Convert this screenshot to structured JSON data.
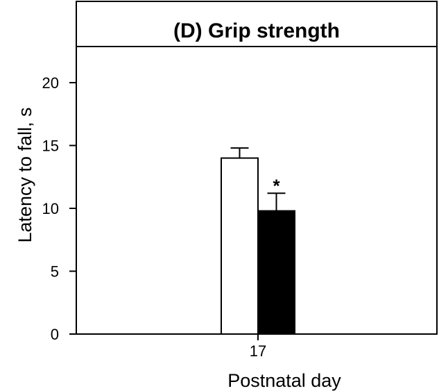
{
  "chart_data": {
    "type": "bar",
    "title": "(D) Grip strength",
    "xlabel": "Postnatal day",
    "ylabel": "Latency to fall, s",
    "categories": [
      "17"
    ],
    "series": [
      {
        "values": [
          14.0
        ],
        "errors": [
          0.8
        ],
        "color": "#ffffff"
      },
      {
        "values": [
          9.8
        ],
        "errors": [
          1.4
        ],
        "color": "#000000"
      }
    ],
    "yticks": [
      "0",
      "5",
      "10",
      "15",
      "20"
    ],
    "ylim": [
      0,
      25
    ],
    "annotations": [
      {
        "text": "*",
        "series": 1,
        "category": "17"
      }
    ],
    "grid": false,
    "legend": "none"
  }
}
